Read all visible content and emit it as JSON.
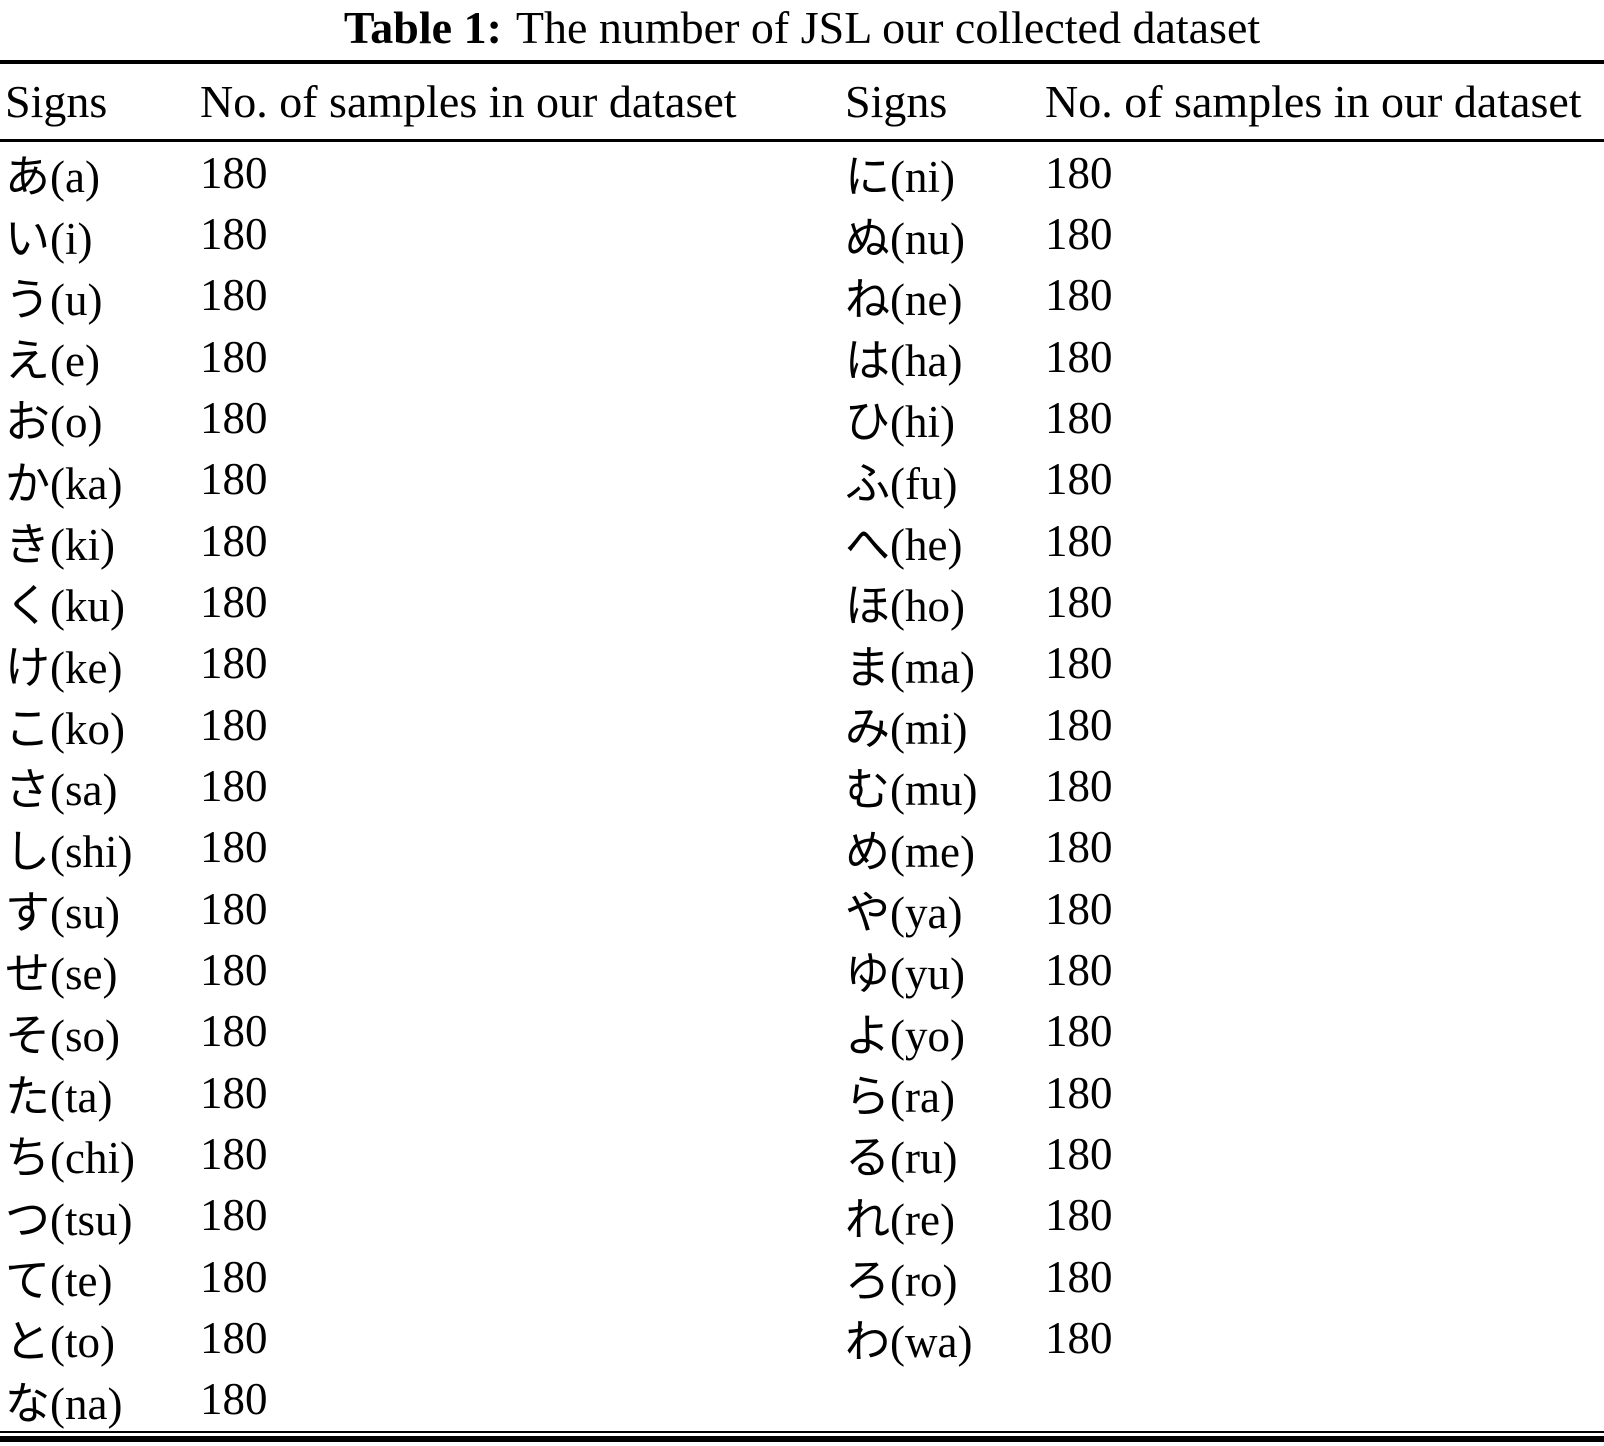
{
  "caption": {
    "label": "Table 1:",
    "text": "The number of JSL our collected dataset"
  },
  "table": {
    "headers": [
      "Signs",
      "No. of samples in our dataset",
      "Signs",
      "No. of samples in our dataset"
    ],
    "rows": [
      {
        "left_sign": "あ(a)",
        "left_count": "180",
        "right_sign": "に(ni)",
        "right_count": "180"
      },
      {
        "left_sign": "い(i)",
        "left_count": "180",
        "right_sign": "ぬ(nu)",
        "right_count": "180"
      },
      {
        "left_sign": "う(u)",
        "left_count": "180",
        "right_sign": "ね(ne)",
        "right_count": "180"
      },
      {
        "left_sign": "え(e)",
        "left_count": "180",
        "right_sign": "は(ha)",
        "right_count": "180"
      },
      {
        "left_sign": "お(o)",
        "left_count": "180",
        "right_sign": "ひ(hi)",
        "right_count": "180"
      },
      {
        "left_sign": "か(ka)",
        "left_count": "180",
        "right_sign": "ふ(fu)",
        "right_count": "180"
      },
      {
        "left_sign": "き(ki)",
        "left_count": "180",
        "right_sign": "へ(he)",
        "right_count": "180"
      },
      {
        "left_sign": "く(ku)",
        "left_count": "180",
        "right_sign": "ほ(ho)",
        "right_count": "180"
      },
      {
        "left_sign": "け(ke)",
        "left_count": "180",
        "right_sign": "ま(ma)",
        "right_count": "180"
      },
      {
        "left_sign": "こ(ko)",
        "left_count": "180",
        "right_sign": "み(mi)",
        "right_count": "180"
      },
      {
        "left_sign": "さ(sa)",
        "left_count": "180",
        "right_sign": "む(mu)",
        "right_count": "180"
      },
      {
        "left_sign": "し(shi)",
        "left_count": "180",
        "right_sign": "め(me)",
        "right_count": "180"
      },
      {
        "left_sign": "す(su)",
        "left_count": "180",
        "right_sign": "や(ya)",
        "right_count": "180"
      },
      {
        "left_sign": "せ(se)",
        "left_count": "180",
        "right_sign": "ゆ(yu)",
        "right_count": "180"
      },
      {
        "left_sign": "そ(so)",
        "left_count": "180",
        "right_sign": "よ(yo)",
        "right_count": "180"
      },
      {
        "left_sign": "た(ta)",
        "left_count": "180",
        "right_sign": "ら(ra)",
        "right_count": "180"
      },
      {
        "left_sign": "ち(chi)",
        "left_count": "180",
        "right_sign": "る(ru)",
        "right_count": "180"
      },
      {
        "left_sign": "つ(tsu)",
        "left_count": "180",
        "right_sign": "れ(re)",
        "right_count": "180"
      },
      {
        "left_sign": "て(te)",
        "left_count": "180",
        "right_sign": "ろ(ro)",
        "right_count": "180"
      },
      {
        "left_sign": "と(to)",
        "left_count": "180",
        "right_sign": "わ(wa)",
        "right_count": "180"
      },
      {
        "left_sign": "な(na)",
        "left_count": "180",
        "right_sign": "",
        "right_count": ""
      }
    ]
  },
  "colors": {
    "background": "#ffffff",
    "text": "#000000",
    "rule": "#000000"
  }
}
